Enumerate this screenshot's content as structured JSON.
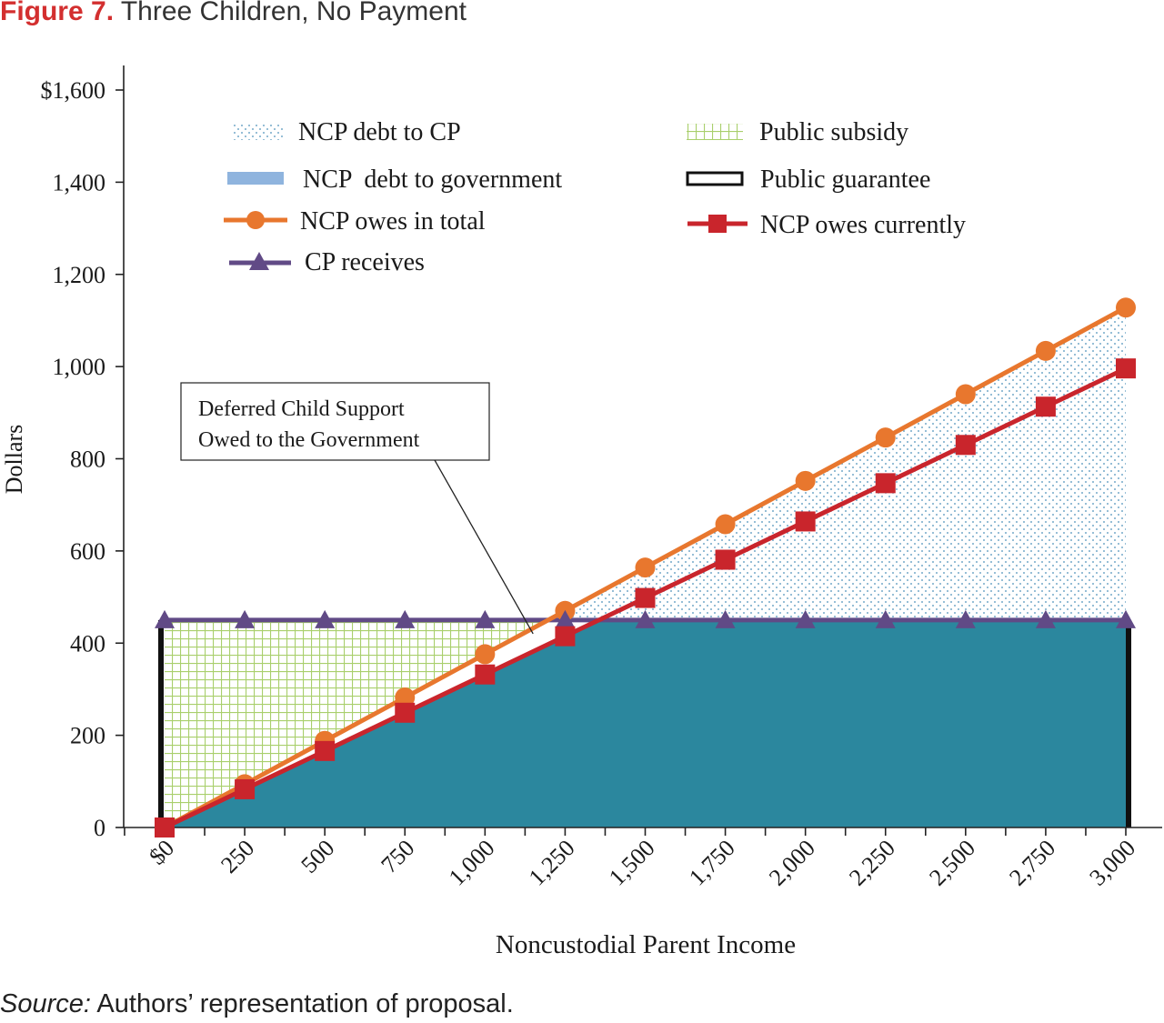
{
  "figure": {
    "label": "Figure 7.",
    "title": "Three Children, No Payment",
    "source_label": "Source:",
    "source_text": " Authors’ representation of proposal."
  },
  "chart_data": {
    "type": "line",
    "xlabel": "Noncustodial Parent Income",
    "ylabel": "Dollars",
    "xlim": [
      0,
      3000
    ],
    "ylim": [
      0,
      1600
    ],
    "x": [
      0,
      250,
      500,
      750,
      1000,
      1250,
      1500,
      1750,
      2000,
      2250,
      2500,
      2750,
      3000
    ],
    "x_tick_labels": [
      "$0",
      "250",
      "500",
      "750",
      "1,000",
      "1,250",
      "1,500",
      "1,750",
      "2,000",
      "2,250",
      "2,500",
      "2,750",
      "3,000"
    ],
    "y_ticks": [
      0,
      200,
      400,
      600,
      800,
      1000,
      1200,
      1400,
      1600
    ],
    "y_tick_labels": [
      "0",
      "200",
      "400",
      "600",
      "800",
      "1,000",
      "1,200",
      "1,400",
      "$1,600"
    ],
    "series": [
      {
        "name": "NCP owes in total",
        "color": "#e8772e",
        "marker": "circle",
        "values": [
          0,
          94,
          188,
          282,
          376,
          470,
          564,
          658,
          752,
          846,
          940,
          1034,
          1128
        ]
      },
      {
        "name": "NCP owes currently",
        "color": "#c9252c",
        "marker": "square",
        "values": [
          0,
          83,
          166,
          249,
          332,
          415,
          498,
          581,
          664,
          747,
          830,
          913,
          996
        ]
      },
      {
        "name": "CP receives",
        "color": "#614a86",
        "marker": "triangle",
        "values": [
          450,
          450,
          450,
          450,
          450,
          450,
          450,
          450,
          450,
          450,
          450,
          450,
          450
        ]
      }
    ],
    "areas": [
      {
        "name": "NCP debt to CP",
        "pattern": "dots",
        "color": "#4a8fb8"
      },
      {
        "name": "NCP  debt to government",
        "color": "#2b879e",
        "legend_color": "#8fb4de"
      },
      {
        "name": "Public subsidy",
        "pattern": "grid",
        "color": "#a9cf6c"
      },
      {
        "name": "Public guarantee",
        "color": "#111111"
      }
    ],
    "annotation": {
      "lines": [
        "Deferred Child Support",
        "Owed to the Government"
      ],
      "points_to_x": 1150
    },
    "legend_position": "top",
    "grid": false
  }
}
